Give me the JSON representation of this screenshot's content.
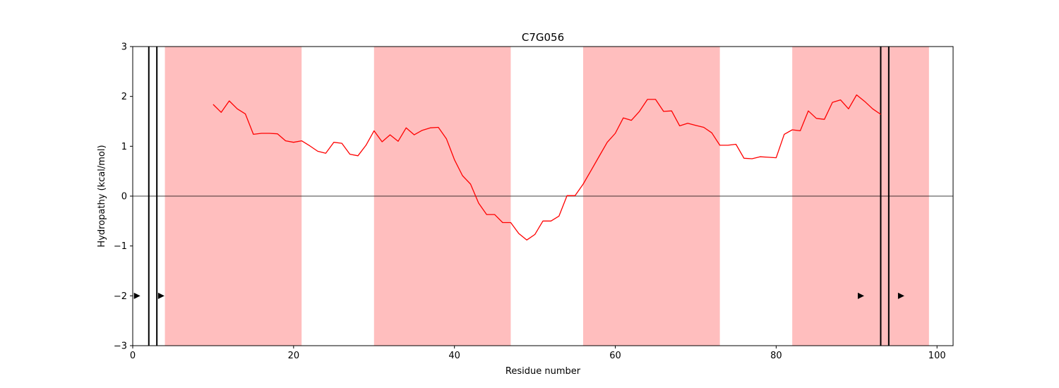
{
  "chart_data": {
    "type": "line",
    "title": "C7G056",
    "xlabel": "Residue number",
    "ylabel": "Hydropathy (kcal/mol)",
    "xlim": [
      0,
      102
    ],
    "ylim": [
      -3,
      3
    ],
    "xticks": [
      0,
      20,
      40,
      60,
      80,
      100
    ],
    "yticks": [
      -3,
      -2,
      -1,
      0,
      1,
      2,
      3
    ],
    "x_tick_labels": [
      "0",
      "20",
      "40",
      "60",
      "80",
      "100"
    ],
    "y_tick_labels": [
      "−3",
      "−2",
      "−1",
      "0",
      "1",
      "2",
      "3"
    ],
    "line_color": "#ff0000",
    "region_color": "#ffbebe",
    "shaded_regions": [
      [
        4,
        21
      ],
      [
        30,
        47
      ],
      [
        56,
        73
      ],
      [
        82,
        99
      ]
    ],
    "zero_line": 0,
    "vertical_lines": [
      2,
      3,
      93,
      94
    ],
    "markers": [
      {
        "x": 0.5,
        "y": -2
      },
      {
        "x": 3.5,
        "y": -2
      },
      {
        "x": 90.5,
        "y": -2
      },
      {
        "x": 95.5,
        "y": -2
      }
    ],
    "series": [
      {
        "x": [
          10,
          11,
          12,
          13,
          14,
          15,
          16,
          17,
          18,
          19,
          20,
          21,
          22,
          23,
          24,
          25,
          26,
          27,
          28,
          29,
          30,
          31,
          32,
          33,
          34,
          35,
          36,
          37,
          38,
          39,
          40,
          41,
          42,
          43,
          44,
          45,
          46,
          47,
          48,
          49,
          50,
          51,
          52,
          53,
          54,
          55,
          56,
          57,
          58,
          59,
          60,
          61,
          62,
          63,
          64,
          65,
          66,
          67,
          68,
          69,
          70,
          71,
          72,
          73,
          74,
          75,
          76,
          77,
          78,
          79,
          80,
          81,
          82,
          83,
          84,
          85,
          86,
          87,
          88,
          89,
          90,
          91,
          92,
          93
        ],
        "values": [
          1.84,
          1.68,
          1.91,
          1.75,
          1.65,
          1.24,
          1.26,
          1.26,
          1.25,
          1.11,
          1.08,
          1.11,
          1.01,
          0.9,
          0.86,
          1.08,
          1.06,
          0.84,
          0.81,
          1.02,
          1.31,
          1.09,
          1.23,
          1.1,
          1.37,
          1.23,
          1.32,
          1.37,
          1.38,
          1.15,
          0.73,
          0.41,
          0.24,
          -0.14,
          -0.37,
          -0.37,
          -0.53,
          -0.53,
          -0.75,
          -0.88,
          -0.77,
          -0.5,
          -0.5,
          -0.4,
          0.01,
          0.01,
          0.24,
          0.52,
          0.8,
          1.08,
          1.26,
          1.57,
          1.52,
          1.7,
          1.94,
          1.94,
          1.7,
          1.71,
          1.41,
          1.46,
          1.42,
          1.38,
          1.27,
          1.02,
          1.02,
          1.04,
          0.76,
          0.75,
          0.79,
          0.78,
          0.77,
          1.24,
          1.33,
          1.31,
          1.71,
          1.56,
          1.54,
          1.88,
          1.93,
          1.75,
          2.03,
          1.9,
          1.75,
          1.64
        ]
      }
    ]
  }
}
